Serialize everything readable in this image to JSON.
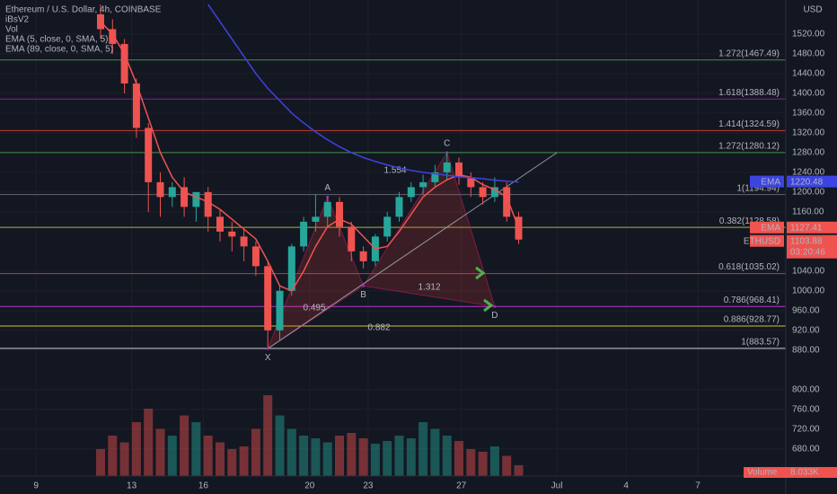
{
  "chart_data": {
    "type": "candlestick",
    "header": [
      "Ethereum / U.S. Dollar, 4h, COINBASE",
      "iBsV2",
      "Vol",
      "EMA (5, close, 0, SMA, 5)",
      "EMA (89, close, 0, SMA, 5)"
    ],
    "currency": "USD",
    "open": [
      1560,
      1530,
      1500,
      1420,
      1330,
      1220,
      1190,
      1210,
      1170,
      1200,
      1150,
      1120,
      1110,
      1090,
      1050,
      920,
      1000,
      1090,
      1140,
      1150,
      1180,
      1130,
      1080,
      1060,
      1110,
      1150,
      1190,
      1210,
      1220,
      1240,
      1260,
      1230,
      1210,
      1190,
      1210,
      1150
    ],
    "high": [
      1580,
      1550,
      1510,
      1430,
      1340,
      1240,
      1220,
      1230,
      1200,
      1210,
      1165,
      1140,
      1125,
      1100,
      1060,
      1010,
      1095,
      1150,
      1195,
      1190,
      1190,
      1140,
      1090,
      1115,
      1160,
      1200,
      1220,
      1235,
      1255,
      1280,
      1270,
      1240,
      1220,
      1230,
      1220,
      1160
    ],
    "low": [
      1510,
      1480,
      1400,
      1310,
      1160,
      1150,
      1170,
      1150,
      1140,
      1120,
      1100,
      1080,
      1060,
      1030,
      883,
      900,
      990,
      1080,
      1120,
      1130,
      1110,
      1060,
      1045,
      1050,
      1100,
      1140,
      1180,
      1195,
      1210,
      1225,
      1215,
      1190,
      1175,
      1180,
      1140,
      1095
    ],
    "close": [
      1530,
      1500,
      1420,
      1330,
      1220,
      1190,
      1210,
      1170,
      1200,
      1150,
      1120,
      1110,
      1090,
      1050,
      920,
      1000,
      1090,
      1140,
      1150,
      1180,
      1130,
      1080,
      1060,
      1110,
      1150,
      1190,
      1210,
      1220,
      1240,
      1260,
      1230,
      1210,
      1190,
      1210,
      1150,
      1103.88
    ],
    "volume": [
      20000,
      30000,
      25000,
      40000,
      50000,
      35000,
      30000,
      45000,
      40000,
      30000,
      25000,
      20000,
      22000,
      35000,
      60000,
      45000,
      35000,
      30000,
      28000,
      25000,
      30000,
      32000,
      28000,
      24000,
      26000,
      30000,
      28000,
      40000,
      35000,
      30000,
      26000,
      20000,
      18000,
      22000,
      15000,
      8033
    ],
    "volume_label": "Volume",
    "volume_last_label": "8.033K",
    "vlim": [
      0,
      100000
    ],
    "up_color": "#26a69a",
    "down_color": "#ef5350",
    "series": [
      {
        "name": "EMA (5, close, 0, SMA, 5)",
        "tag": "EMA",
        "color": "#f05350",
        "values": [
          1545,
          1520,
          1480,
          1420,
          1350,
          1280,
          1230,
          1200,
          1190,
          1180,
          1165,
          1145,
          1125,
          1105,
          1060,
          1010,
          1000,
          1040,
          1090,
          1130,
          1145,
          1135,
          1110,
          1085,
          1090,
          1120,
          1155,
          1190,
          1210,
          1225,
          1235,
          1230,
          1215,
          1205,
          1190,
          1127.41
        ]
      },
      {
        "name": "EMA (89, close, 0, SMA, 5)",
        "tag": "EMA",
        "color": "#3c44e0",
        "values": [
          null,
          null,
          null,
          null,
          null,
          null,
          null,
          null,
          null,
          1580,
          1545,
          1510,
          1475,
          1440,
          1410,
          1385,
          1360,
          1340,
          1322,
          1306,
          1292,
          1280,
          1270,
          1262,
          1255,
          1249,
          1244,
          1240,
          1237,
          1234,
          1231,
          1229,
          1227,
          1224,
          1222,
          1220.48
        ]
      }
    ],
    "symbol_tag": "ETHUSD",
    "countdown": "03:20:46",
    "fib_levels": [
      {
        "label": "1.272(1467.49)",
        "value": 1467.49,
        "color": "#4caf50"
      },
      {
        "label": "1.618(1388.48)",
        "value": 1388.48,
        "color": "#9c27b0"
      },
      {
        "label": "1.414(1324.59)",
        "value": 1324.59,
        "color": "#f44336"
      },
      {
        "label": "1.272(1280.12)",
        "value": 1280.12,
        "color": "#4caf50"
      },
      {
        "label": "1(1194.94)",
        "value": 1194.94,
        "color": "#787b86"
      },
      {
        "label": "0.382(1128.58)",
        "value": 1128.58,
        "color": "#cddc39"
      },
      {
        "label": "0.618(1035.02)",
        "value": 1035.02,
        "color": "#f44336"
      },
      {
        "label": "0.786(968.41)",
        "value": 968.41,
        "color": "#e040fb"
      },
      {
        "label": "0.886(928.77)",
        "value": 928.77,
        "color": "#ffeb3b"
      },
      {
        "label": "1(883.57)",
        "value": 883.57,
        "color": "#ffffff"
      }
    ],
    "pattern": [
      {
        "label": "X",
        "index": 14,
        "price": 883
      },
      {
        "label": "A",
        "index": 19,
        "price": 1190
      },
      {
        "label": "B",
        "index": 22,
        "price": 1010
      },
      {
        "label": "C",
        "index": 29,
        "price": 1280
      },
      {
        "label": "D",
        "index": 33,
        "price": 968.41
      }
    ],
    "pattern_ratios": [
      "0.495",
      "1.554",
      "1.312",
      "0.882"
    ],
    "ylim": [
      625,
      1589
    ],
    "yticks": [
      {
        "value": 1520,
        "label": "1520.00"
      },
      {
        "value": 1480,
        "label": "1480.00"
      },
      {
        "value": 1440,
        "label": "1440.00"
      },
      {
        "value": 1400,
        "label": "1400.00"
      },
      {
        "value": 1360,
        "label": "1360.00"
      },
      {
        "value": 1320,
        "label": "1320.00"
      },
      {
        "value": 1280,
        "label": "1280.00"
      },
      {
        "value": 1240,
        "label": "1240.00"
      },
      {
        "value": 1200,
        "label": "1200.00"
      },
      {
        "value": 1160,
        "label": "1160.00"
      },
      {
        "value": 1040,
        "label": "1040.00"
      },
      {
        "value": 1000,
        "label": "1000.00"
      },
      {
        "value": 960,
        "label": "960.00"
      },
      {
        "value": 920,
        "label": "920.00"
      },
      {
        "value": 880,
        "label": "880.00"
      },
      {
        "value": 800,
        "label": "800.00"
      },
      {
        "value": 760,
        "label": "760.00"
      },
      {
        "value": 720,
        "label": "720.00"
      },
      {
        "value": 680,
        "label": "680.00"
      }
    ],
    "xticks": [
      {
        "value": -5.4,
        "label": "9"
      },
      {
        "value": 2.6,
        "label": "13"
      },
      {
        "value": 8.6,
        "label": "16"
      },
      {
        "value": 17.5,
        "label": "20"
      },
      {
        "value": 22.4,
        "label": "23"
      },
      {
        "value": 30.2,
        "label": "27"
      },
      {
        "value": 38.2,
        "label": "Jul"
      },
      {
        "value": 44,
        "label": "4"
      },
      {
        "value": 50,
        "label": "7"
      }
    ],
    "grid": true
  }
}
